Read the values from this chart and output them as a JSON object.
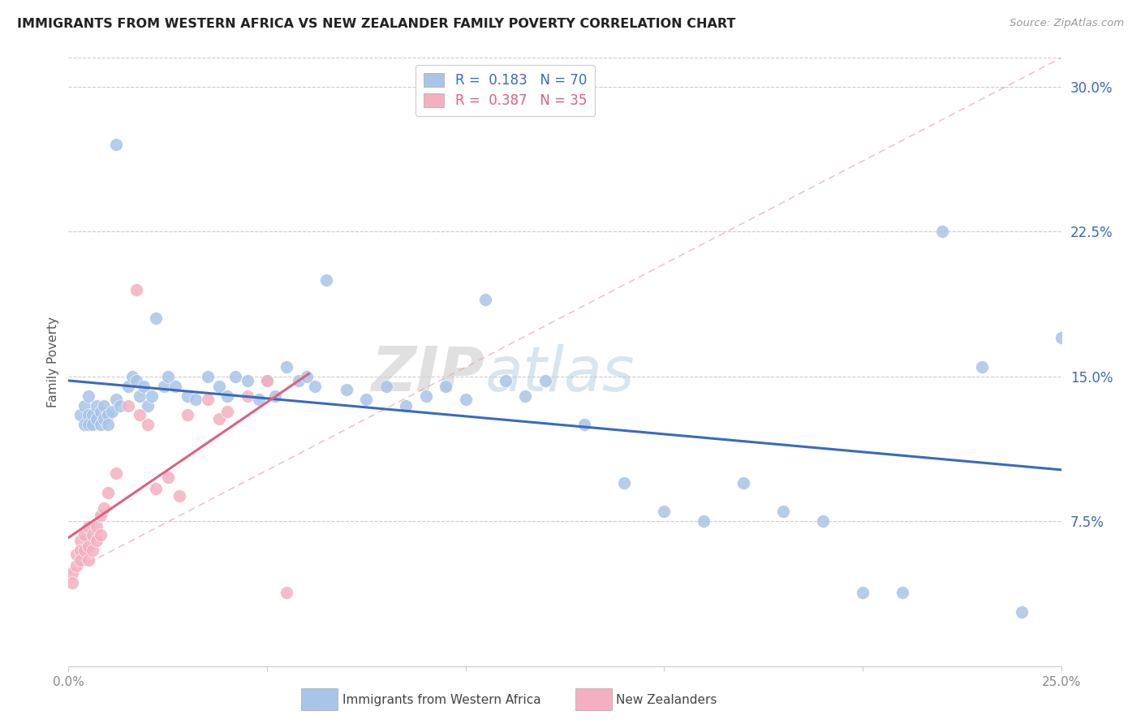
{
  "title": "IMMIGRANTS FROM WESTERN AFRICA VS NEW ZEALANDER FAMILY POVERTY CORRELATION CHART",
  "source": "Source: ZipAtlas.com",
  "ylabel": "Family Poverty",
  "yticks": [
    0.075,
    0.15,
    0.225,
    0.3
  ],
  "ytick_labels": [
    "7.5%",
    "15.0%",
    "22.5%",
    "30.0%"
  ],
  "xmin": 0.0,
  "xmax": 0.25,
  "ymin": 0.0,
  "ymax": 0.315,
  "series1_color": "#a8c4e8",
  "series2_color": "#f4afc0",
  "trendline1_color": "#3a6abf",
  "trendline2_color": "#e06080",
  "trendline_dashed_color": "#d8a0b0",
  "legend1_R": "0.183",
  "legend1_N": "70",
  "legend2_R": "0.387",
  "legend2_N": "35",
  "legend_box1_color": "#a8c4e8",
  "legend_box2_color": "#f4afc0",
  "legend_text_color": "#3a6abf",
  "legend_text2_color": "#e06080",
  "footer_label1": "Immigrants from Western Africa",
  "footer_label2": "New Zealanders",
  "watermark_zip": "ZIP",
  "watermark_atlas": "atlas",
  "scatter1_x": [
    0.003,
    0.004,
    0.004,
    0.005,
    0.005,
    0.005,
    0.006,
    0.006,
    0.007,
    0.007,
    0.008,
    0.008,
    0.009,
    0.009,
    0.01,
    0.01,
    0.011,
    0.012,
    0.012,
    0.013,
    0.015,
    0.016,
    0.017,
    0.018,
    0.019,
    0.02,
    0.021,
    0.022,
    0.024,
    0.025,
    0.027,
    0.03,
    0.032,
    0.035,
    0.038,
    0.04,
    0.042,
    0.045,
    0.048,
    0.05,
    0.052,
    0.055,
    0.058,
    0.06,
    0.062,
    0.065,
    0.07,
    0.075,
    0.08,
    0.085,
    0.09,
    0.095,
    0.1,
    0.105,
    0.11,
    0.115,
    0.12,
    0.13,
    0.14,
    0.15,
    0.16,
    0.17,
    0.18,
    0.19,
    0.2,
    0.21,
    0.22,
    0.23,
    0.24,
    0.25
  ],
  "scatter1_y": [
    0.13,
    0.135,
    0.125,
    0.14,
    0.13,
    0.125,
    0.13,
    0.125,
    0.135,
    0.128,
    0.132,
    0.125,
    0.135,
    0.128,
    0.13,
    0.125,
    0.132,
    0.27,
    0.138,
    0.135,
    0.145,
    0.15,
    0.148,
    0.14,
    0.145,
    0.135,
    0.14,
    0.18,
    0.145,
    0.15,
    0.145,
    0.14,
    0.138,
    0.15,
    0.145,
    0.14,
    0.15,
    0.148,
    0.138,
    0.148,
    0.14,
    0.155,
    0.148,
    0.15,
    0.145,
    0.2,
    0.143,
    0.138,
    0.145,
    0.135,
    0.14,
    0.145,
    0.138,
    0.19,
    0.148,
    0.14,
    0.148,
    0.125,
    0.095,
    0.08,
    0.075,
    0.095,
    0.08,
    0.075,
    0.038,
    0.038,
    0.225,
    0.155,
    0.028,
    0.17
  ],
  "scatter2_x": [
    0.001,
    0.001,
    0.002,
    0.002,
    0.003,
    0.003,
    0.003,
    0.004,
    0.004,
    0.005,
    0.005,
    0.005,
    0.006,
    0.006,
    0.007,
    0.007,
    0.008,
    0.008,
    0.009,
    0.01,
    0.012,
    0.015,
    0.017,
    0.018,
    0.02,
    0.022,
    0.025,
    0.028,
    0.03,
    0.035,
    0.038,
    0.04,
    0.045,
    0.05,
    0.055
  ],
  "scatter2_y": [
    0.048,
    0.043,
    0.058,
    0.052,
    0.065,
    0.06,
    0.055,
    0.068,
    0.06,
    0.055,
    0.072,
    0.062,
    0.068,
    0.06,
    0.072,
    0.065,
    0.078,
    0.068,
    0.082,
    0.09,
    0.1,
    0.135,
    0.195,
    0.13,
    0.125,
    0.092,
    0.098,
    0.088,
    0.13,
    0.138,
    0.128,
    0.132,
    0.14,
    0.148,
    0.038
  ]
}
